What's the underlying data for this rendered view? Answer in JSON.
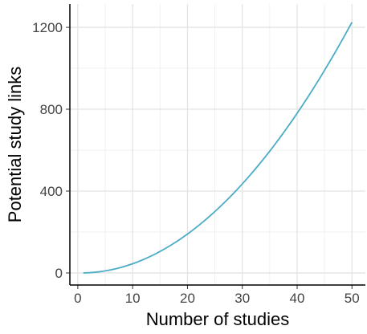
{
  "chart_data": {
    "type": "line",
    "x_label": "Number of studies",
    "y_label": "Potential study links",
    "x": [
      1,
      2,
      3,
      4,
      5,
      6,
      7,
      8,
      9,
      10,
      11,
      12,
      13,
      14,
      15,
      16,
      17,
      18,
      19,
      20,
      21,
      22,
      23,
      24,
      25,
      26,
      27,
      28,
      29,
      30,
      31,
      32,
      33,
      34,
      35,
      36,
      37,
      38,
      39,
      40,
      41,
      42,
      43,
      44,
      45,
      46,
      47,
      48,
      49,
      50
    ],
    "series": [
      {
        "name": "Potential study links",
        "color": "#4bacc6",
        "values": [
          0,
          1,
          3,
          6,
          10,
          15,
          21,
          28,
          36,
          45,
          55,
          66,
          78,
          91,
          105,
          120,
          136,
          153,
          171,
          190,
          210,
          231,
          253,
          276,
          300,
          325,
          351,
          378,
          406,
          435,
          465,
          496,
          528,
          561,
          595,
          630,
          666,
          703,
          741,
          780,
          820,
          861,
          903,
          946,
          990,
          1035,
          1081,
          1128,
          1176,
          1225
        ]
      }
    ],
    "xlim": [
      -1.45,
      52.45
    ],
    "ylim": [
      -59,
      1314
    ],
    "xticks": [
      0,
      10,
      20,
      30,
      40,
      50
    ],
    "yticks": [
      0,
      400,
      800,
      1200
    ],
    "x_minor_grid": [
      5,
      15,
      25,
      35,
      45
    ],
    "y_minor_grid": [
      200,
      600,
      1000
    ],
    "grid": true
  }
}
